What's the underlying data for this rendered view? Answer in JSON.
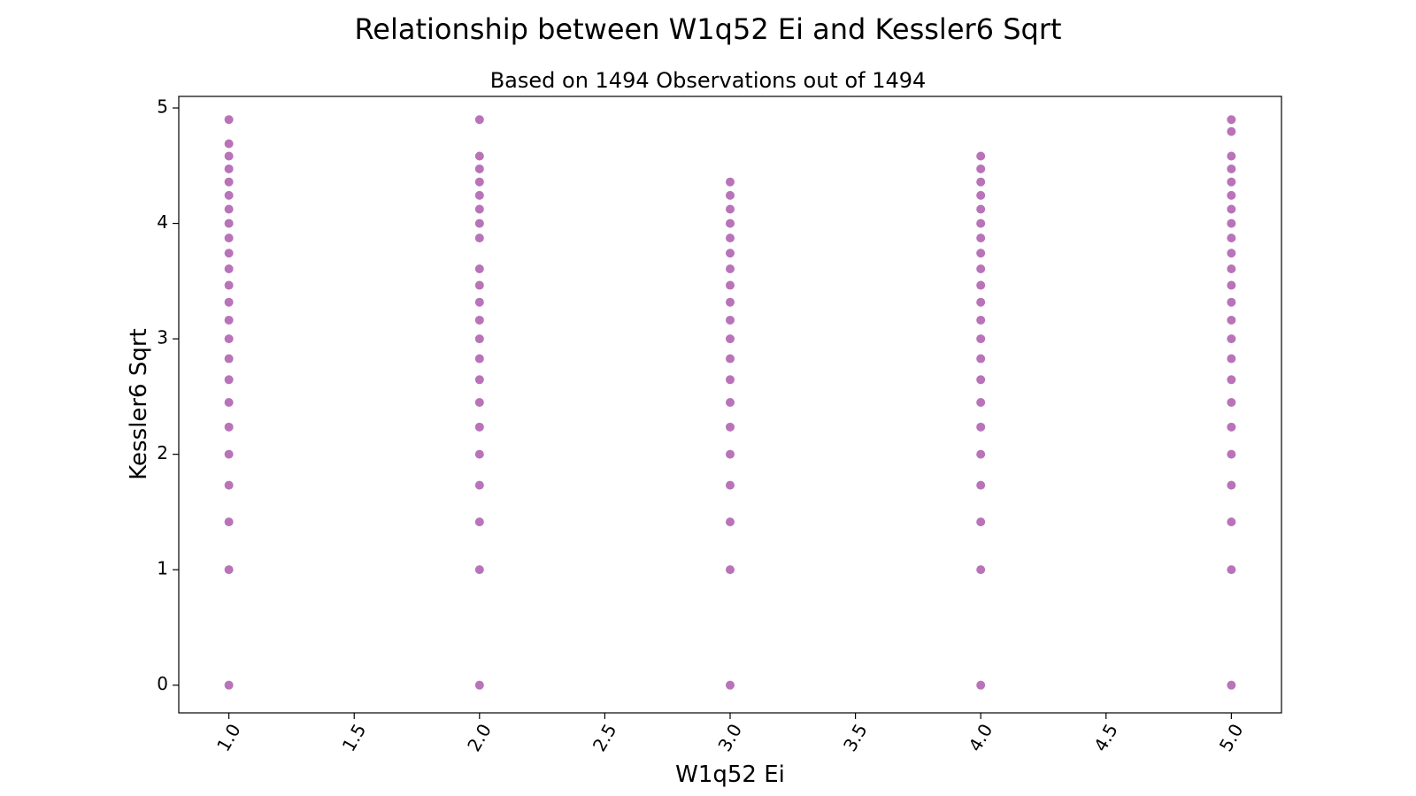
{
  "chart_data": {
    "type": "scatter",
    "title": "Relationship between W1q52 Ei and Kessler6 Sqrt",
    "subtitle": "Based on 1494 Observations out of 1494",
    "xlabel": "W1q52 Ei",
    "ylabel": "Kessler6 Sqrt",
    "xlim": [
      0.8,
      5.2
    ],
    "ylim": [
      -0.24,
      5.1
    ],
    "x_ticks": [
      1.0,
      1.5,
      2.0,
      2.5,
      3.0,
      3.5,
      4.0,
      4.5,
      5.0
    ],
    "x_tick_labels": [
      "1.0",
      "1.5",
      "2.0",
      "2.5",
      "3.0",
      "3.5",
      "4.0",
      "4.5",
      "5.0"
    ],
    "y_ticks": [
      0,
      1,
      2,
      3,
      4,
      5
    ],
    "y_tick_labels": [
      "0",
      "1",
      "2",
      "3",
      "4",
      "5"
    ],
    "grid": false,
    "marker_color": "#800080",
    "marker_alpha": 0.55,
    "series": [
      {
        "points": [
          {
            "x": 1,
            "y": 0
          },
          {
            "x": 1,
            "y": 1
          },
          {
            "x": 1,
            "y": 1.414
          },
          {
            "x": 1,
            "y": 1.732
          },
          {
            "x": 1,
            "y": 2
          },
          {
            "x": 1,
            "y": 2.236
          },
          {
            "x": 1,
            "y": 2.449
          },
          {
            "x": 1,
            "y": 2.646
          },
          {
            "x": 1,
            "y": 2.828
          },
          {
            "x": 1,
            "y": 3
          },
          {
            "x": 1,
            "y": 3.162
          },
          {
            "x": 1,
            "y": 3.317
          },
          {
            "x": 1,
            "y": 3.464
          },
          {
            "x": 1,
            "y": 3.606
          },
          {
            "x": 1,
            "y": 3.742
          },
          {
            "x": 1,
            "y": 3.873
          },
          {
            "x": 1,
            "y": 4
          },
          {
            "x": 1,
            "y": 4.123
          },
          {
            "x": 1,
            "y": 4.243
          },
          {
            "x": 1,
            "y": 4.359
          },
          {
            "x": 1,
            "y": 4.472
          },
          {
            "x": 1,
            "y": 4.583
          },
          {
            "x": 1,
            "y": 4.69
          },
          {
            "x": 1,
            "y": 4.899
          },
          {
            "x": 2,
            "y": 0
          },
          {
            "x": 2,
            "y": 1
          },
          {
            "x": 2,
            "y": 1.414
          },
          {
            "x": 2,
            "y": 1.732
          },
          {
            "x": 2,
            "y": 2
          },
          {
            "x": 2,
            "y": 2.236
          },
          {
            "x": 2,
            "y": 2.449
          },
          {
            "x": 2,
            "y": 2.646
          },
          {
            "x": 2,
            "y": 2.828
          },
          {
            "x": 2,
            "y": 3
          },
          {
            "x": 2,
            "y": 3.162
          },
          {
            "x": 2,
            "y": 3.317
          },
          {
            "x": 2,
            "y": 3.464
          },
          {
            "x": 2,
            "y": 3.606
          },
          {
            "x": 2,
            "y": 3.873
          },
          {
            "x": 2,
            "y": 4
          },
          {
            "x": 2,
            "y": 4.123
          },
          {
            "x": 2,
            "y": 4.243
          },
          {
            "x": 2,
            "y": 4.359
          },
          {
            "x": 2,
            "y": 4.472
          },
          {
            "x": 2,
            "y": 4.583
          },
          {
            "x": 2,
            "y": 4.899
          },
          {
            "x": 3,
            "y": 0
          },
          {
            "x": 3,
            "y": 1
          },
          {
            "x": 3,
            "y": 1.414
          },
          {
            "x": 3,
            "y": 1.732
          },
          {
            "x": 3,
            "y": 2
          },
          {
            "x": 3,
            "y": 2.236
          },
          {
            "x": 3,
            "y": 2.449
          },
          {
            "x": 3,
            "y": 2.646
          },
          {
            "x": 3,
            "y": 2.828
          },
          {
            "x": 3,
            "y": 3
          },
          {
            "x": 3,
            "y": 3.162
          },
          {
            "x": 3,
            "y": 3.317
          },
          {
            "x": 3,
            "y": 3.464
          },
          {
            "x": 3,
            "y": 3.606
          },
          {
            "x": 3,
            "y": 3.742
          },
          {
            "x": 3,
            "y": 3.873
          },
          {
            "x": 3,
            "y": 4
          },
          {
            "x": 3,
            "y": 4.123
          },
          {
            "x": 3,
            "y": 4.243
          },
          {
            "x": 3,
            "y": 4.359
          },
          {
            "x": 4,
            "y": 0
          },
          {
            "x": 4,
            "y": 1
          },
          {
            "x": 4,
            "y": 1.414
          },
          {
            "x": 4,
            "y": 1.732
          },
          {
            "x": 4,
            "y": 2
          },
          {
            "x": 4,
            "y": 2.236
          },
          {
            "x": 4,
            "y": 2.449
          },
          {
            "x": 4,
            "y": 2.646
          },
          {
            "x": 4,
            "y": 2.828
          },
          {
            "x": 4,
            "y": 3
          },
          {
            "x": 4,
            "y": 3.162
          },
          {
            "x": 4,
            "y": 3.317
          },
          {
            "x": 4,
            "y": 3.464
          },
          {
            "x": 4,
            "y": 3.606
          },
          {
            "x": 4,
            "y": 3.742
          },
          {
            "x": 4,
            "y": 3.873
          },
          {
            "x": 4,
            "y": 4
          },
          {
            "x": 4,
            "y": 4.123
          },
          {
            "x": 4,
            "y": 4.243
          },
          {
            "x": 4,
            "y": 4.359
          },
          {
            "x": 4,
            "y": 4.472
          },
          {
            "x": 4,
            "y": 4.583
          },
          {
            "x": 5,
            "y": 0
          },
          {
            "x": 5,
            "y": 1
          },
          {
            "x": 5,
            "y": 1.414
          },
          {
            "x": 5,
            "y": 1.732
          },
          {
            "x": 5,
            "y": 2
          },
          {
            "x": 5,
            "y": 2.236
          },
          {
            "x": 5,
            "y": 2.449
          },
          {
            "x": 5,
            "y": 2.646
          },
          {
            "x": 5,
            "y": 2.828
          },
          {
            "x": 5,
            "y": 3
          },
          {
            "x": 5,
            "y": 3.162
          },
          {
            "x": 5,
            "y": 3.317
          },
          {
            "x": 5,
            "y": 3.464
          },
          {
            "x": 5,
            "y": 3.606
          },
          {
            "x": 5,
            "y": 3.742
          },
          {
            "x": 5,
            "y": 3.873
          },
          {
            "x": 5,
            "y": 4
          },
          {
            "x": 5,
            "y": 4.123
          },
          {
            "x": 5,
            "y": 4.243
          },
          {
            "x": 5,
            "y": 4.359
          },
          {
            "x": 5,
            "y": 4.472
          },
          {
            "x": 5,
            "y": 4.583
          },
          {
            "x": 5,
            "y": 4.796
          },
          {
            "x": 5,
            "y": 4.899
          }
        ]
      }
    ]
  }
}
